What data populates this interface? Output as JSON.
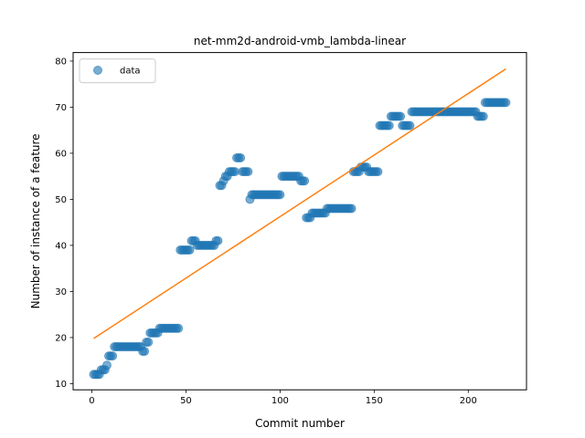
{
  "chart_data": {
    "type": "scatter",
    "title": "net-mm2d-android-vmb_lambda-linear",
    "xlabel": "Commit number",
    "ylabel": "Number of instance of a feature",
    "xlim": [
      -9.95,
      230.95
    ],
    "ylim": [
      8.65,
      81.85
    ],
    "xticks": [
      0,
      50,
      100,
      150,
      200
    ],
    "yticks": [
      10,
      20,
      30,
      40,
      50,
      60,
      70,
      80
    ],
    "grid": false,
    "legend": {
      "placement": "upper-left",
      "entries": [
        "data"
      ]
    },
    "colors": {
      "data": "#1f77b4",
      "fit": "#ff7f0e"
    },
    "series": [
      {
        "name": "data",
        "kind": "scatter",
        "runs": [
          {
            "from": 1,
            "to": 4,
            "y": 12
          },
          {
            "from": 5,
            "to": 7,
            "y": 13
          },
          {
            "from": 8,
            "to": 8,
            "y": 14
          },
          {
            "from": 9,
            "to": 11,
            "y": 16
          },
          {
            "from": 12,
            "to": 26,
            "y": 18
          },
          {
            "from": 27,
            "to": 28,
            "y": 17
          },
          {
            "from": 29,
            "to": 30,
            "y": 19
          },
          {
            "from": 31,
            "to": 35,
            "y": 21
          },
          {
            "from": 36,
            "to": 46,
            "y": 22
          },
          {
            "from": 47,
            "to": 52,
            "y": 39
          },
          {
            "from": 53,
            "to": 55,
            "y": 41
          },
          {
            "from": 56,
            "to": 65,
            "y": 40
          },
          {
            "from": 66,
            "to": 67,
            "y": 41
          },
          {
            "from": 68,
            "to": 69,
            "y": 53
          },
          {
            "from": 70,
            "to": 70,
            "y": 54
          },
          {
            "from": 71,
            "to": 72,
            "y": 55
          },
          {
            "from": 73,
            "to": 76,
            "y": 56
          },
          {
            "from": 77,
            "to": 79,
            "y": 59
          },
          {
            "from": 80,
            "to": 83,
            "y": 56
          },
          {
            "from": 84,
            "to": 84,
            "y": 50
          },
          {
            "from": 85,
            "to": 100,
            "y": 51
          },
          {
            "from": 101,
            "to": 110,
            "y": 55
          },
          {
            "from": 111,
            "to": 113,
            "y": 54
          },
          {
            "from": 114,
            "to": 116,
            "y": 46
          },
          {
            "from": 117,
            "to": 124,
            "y": 47
          },
          {
            "from": 125,
            "to": 138,
            "y": 48
          },
          {
            "from": 139,
            "to": 142,
            "y": 56
          },
          {
            "from": 143,
            "to": 146,
            "y": 57
          },
          {
            "from": 147,
            "to": 152,
            "y": 56
          },
          {
            "from": 153,
            "to": 158,
            "y": 66
          },
          {
            "from": 159,
            "to": 164,
            "y": 68
          },
          {
            "from": 165,
            "to": 169,
            "y": 66
          },
          {
            "from": 170,
            "to": 204,
            "y": 69
          },
          {
            "from": 205,
            "to": 208,
            "y": 68
          },
          {
            "from": 209,
            "to": 220,
            "y": 71
          }
        ]
      },
      {
        "name": "",
        "kind": "line",
        "x": [
          1,
          220
        ],
        "y": [
          19.8,
          78.3
        ]
      }
    ]
  }
}
